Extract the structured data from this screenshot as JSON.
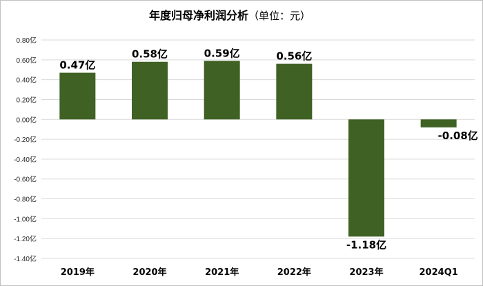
{
  "chart_data": {
    "type": "bar",
    "title": "年度归母净利润分析",
    "title_unit": "（单位：元）",
    "categories": [
      "2019年",
      "2020年",
      "2021年",
      "2022年",
      "2023年",
      "2024Q1"
    ],
    "values": [
      0.47,
      0.58,
      0.59,
      0.56,
      -1.18,
      -0.08
    ],
    "data_labels": [
      "0.47亿",
      "0.58亿",
      "0.59亿",
      "0.56亿",
      "-1.18亿",
      "-0.08亿"
    ],
    "y_ticks": [
      "0.80亿",
      "0.60亿",
      "0.40亿",
      "0.20亿",
      "0.00亿",
      "-0.20亿",
      "-0.40亿",
      "-0.60亿",
      "-0.80亿",
      "-1.00亿",
      "-1.20亿",
      "-1.40亿"
    ],
    "ylim": [
      -1.4,
      0.8
    ],
    "y_step": 0.2,
    "grid": true,
    "bar_color": "#3f6124",
    "grid_color": "#d9d9d9"
  }
}
